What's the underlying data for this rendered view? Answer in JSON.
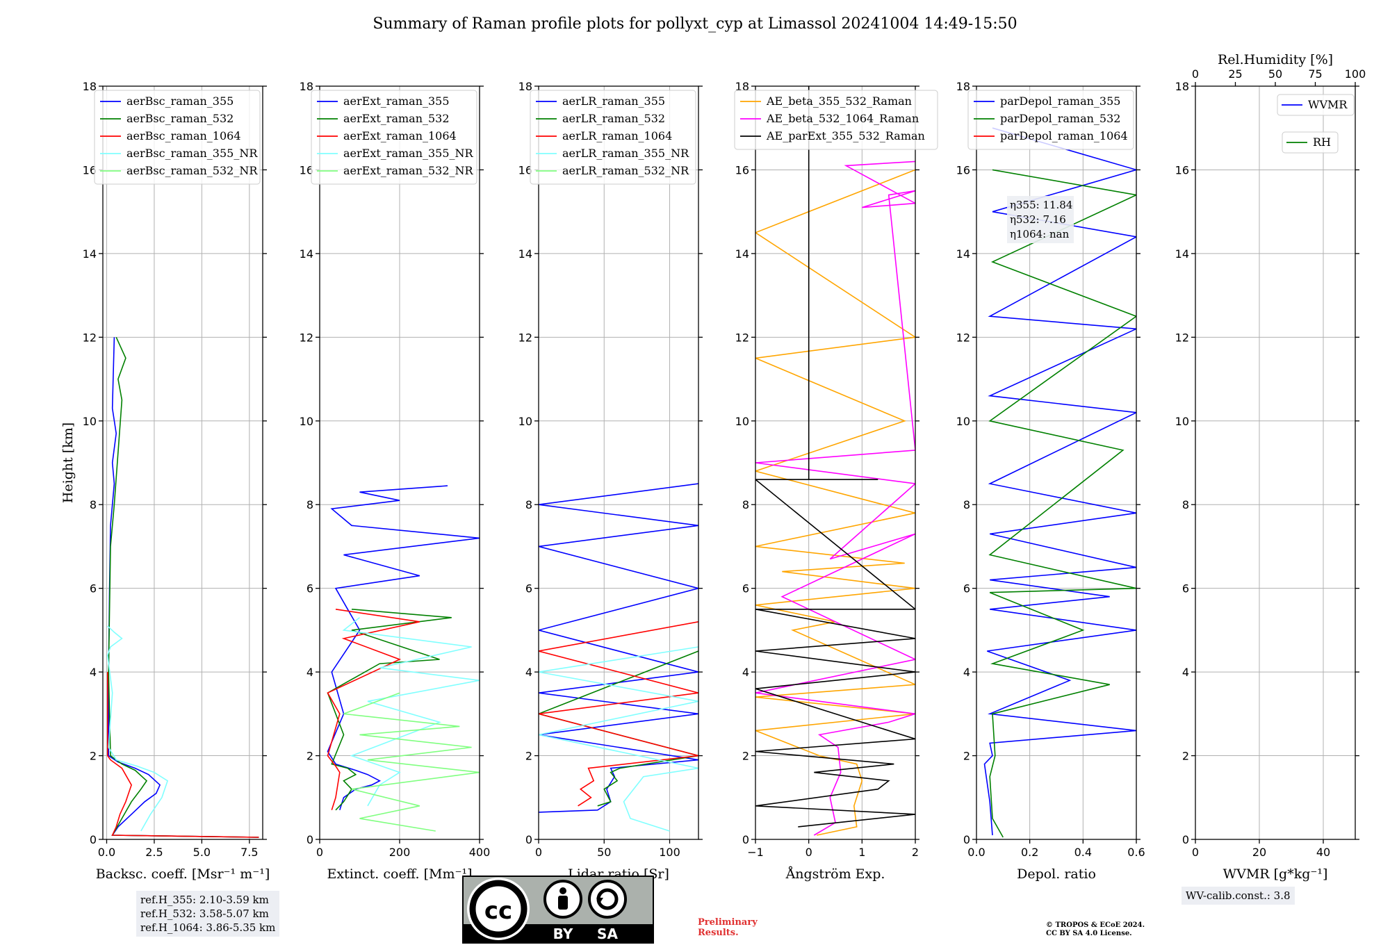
{
  "figure": {
    "title": "Summary of Raman profile plots for pollyxt_cyp at Limassol 20241004 14:49-15:50",
    "ylabel": "Height [km]",
    "ref_heights": [
      "ref.H_355: 2.10-3.59 km",
      "ref.H_532: 3.58-5.07 km",
      "ref.H_1064: 3.86-5.35 km"
    ],
    "wv_calib": "WV-calib.const.: 3.8",
    "preliminary": [
      "Preliminary",
      "Results."
    ],
    "copyright": [
      "© TROPOS & ECoE 2024.",
      "CC BY SA 4.0 License."
    ],
    "license_badge": {
      "by": "BY",
      "sa": "SA"
    },
    "colors": {
      "blue": "#0000ff",
      "green": "#008000",
      "red": "#ff0000",
      "cyan": "#80ffff",
      "lightgreen": "#80ff80",
      "orange": "#ffa500",
      "magenta": "#ff00ff",
      "black": "#000000"
    }
  },
  "chart_data": [
    {
      "type": "line",
      "id": "bsc",
      "xlabel": "Backsc. coeff. [Msr⁻¹ m⁻¹]",
      "xlim": [
        -0.2,
        8.2
      ],
      "ylim": [
        0,
        18
      ],
      "xticks": [
        0.0,
        2.5,
        5.0,
        7.5
      ],
      "xticklabels": [
        "0.0",
        "2.5",
        "5.0",
        "7.5"
      ],
      "legend": "top-right",
      "series": [
        {
          "name": "aerBsc_raman_355",
          "color": "#0000ff",
          "x": [
            8.0,
            0.3,
            0.6,
            1.3,
            2.0,
            2.6,
            2.8,
            2.2,
            1.5,
            0.6,
            0.1,
            0.1,
            0.15,
            0.2,
            0.4,
            0.3,
            0.5,
            0.3,
            0.4
          ],
          "y": [
            0.05,
            0.1,
            0.3,
            0.6,
            0.9,
            1.1,
            1.3,
            1.55,
            1.7,
            1.85,
            2.0,
            4.0,
            6.0,
            7.5,
            8.5,
            9.0,
            9.7,
            10.3,
            12.0
          ]
        },
        {
          "name": "aerBsc_raman_532",
          "color": "#008000",
          "x": [
            8.0,
            0.3,
            0.8,
            1.3,
            1.8,
            2.1,
            1.5,
            0.8,
            0.2,
            0.1,
            0.2,
            0.4,
            0.8,
            0.6,
            1.0,
            0.5
          ],
          "y": [
            0.05,
            0.1,
            0.5,
            0.9,
            1.2,
            1.4,
            1.65,
            1.8,
            2.0,
            4.0,
            7.0,
            8.0,
            10.5,
            11.0,
            11.5,
            12.0
          ]
        },
        {
          "name": "aerBsc_raman_1064",
          "color": "#ff0000",
          "x": [
            8.0,
            0.3,
            0.5,
            0.7,
            1.0,
            1.3,
            0.8,
            0.2,
            0.05,
            0.05
          ],
          "y": [
            0.05,
            0.1,
            0.3,
            0.6,
            0.9,
            1.3,
            1.7,
            1.9,
            2.0,
            4.0
          ]
        },
        {
          "name": "aerBsc_raman_355_NR",
          "color": "#80ffff",
          "x": [
            1.8,
            2.3,
            2.9,
            3.2,
            2.5,
            1.6,
            0.5,
            0.1,
            0.3,
            0.05,
            0.2,
            0.8,
            0.4,
            0.05
          ],
          "y": [
            0.2,
            0.6,
            1.0,
            1.4,
            1.6,
            1.75,
            1.9,
            2.2,
            3.5,
            4.4,
            4.6,
            4.8,
            4.95,
            5.1
          ]
        },
        {
          "name": "aerBsc_raman_532_NR",
          "color": "#80ff80",
          "x": [],
          "y": []
        }
      ]
    },
    {
      "type": "line",
      "id": "ext",
      "xlabel": "Extinct. coeff. [Mm⁻¹]",
      "xlim": [
        0,
        400
      ],
      "ylim": [
        0,
        18
      ],
      "xticks": [
        0,
        200,
        400
      ],
      "xticklabels": [
        "0",
        "200",
        "400"
      ],
      "legend": "top-right",
      "series": [
        {
          "name": "aerExt_raman_355",
          "color": "#0000ff",
          "x": [
            50,
            60,
            90,
            130,
            150,
            120,
            90,
            40,
            20,
            60,
            30,
            100,
            40,
            250,
            60,
            400,
            80,
            30,
            200,
            100,
            320
          ],
          "y": [
            0.7,
            1.0,
            1.2,
            1.3,
            1.4,
            1.55,
            1.65,
            1.8,
            2.1,
            3.0,
            4.0,
            5.0,
            6.0,
            6.3,
            6.8,
            7.2,
            7.5,
            7.9,
            8.1,
            8.3,
            8.45
          ]
        },
        {
          "name": "aerExt_raman_532",
          "color": "#008000",
          "x": [
            40,
            60,
            80,
            60,
            90,
            70,
            30,
            60,
            20,
            150,
            300,
            80,
            330,
            80
          ],
          "y": [
            0.7,
            0.9,
            1.2,
            1.4,
            1.55,
            1.7,
            1.8,
            2.5,
            3.5,
            4.2,
            4.3,
            5.0,
            5.3,
            5.5
          ]
        },
        {
          "name": "aerExt_raman_1064",
          "color": "#ff0000",
          "x": [
            30,
            40,
            45,
            50,
            40,
            20,
            50,
            20,
            200,
            60,
            250,
            40
          ],
          "y": [
            0.7,
            1.0,
            1.3,
            1.6,
            1.75,
            2.0,
            3.0,
            3.5,
            4.3,
            4.8,
            5.2,
            5.5
          ]
        },
        {
          "name": "aerExt_raman_355_NR",
          "color": "#80ffff",
          "x": [
            120,
            150,
            200,
            80,
            300,
            120,
            400,
            150,
            380,
            60,
            100
          ],
          "y": [
            0.8,
            1.3,
            1.6,
            2.0,
            2.8,
            3.3,
            3.8,
            4.1,
            4.6,
            5.0,
            5.3
          ]
        },
        {
          "name": "aerExt_raman_532_NR",
          "color": "#80ff80",
          "x": [
            290,
            100,
            250,
            80,
            400,
            120,
            380,
            100,
            350,
            60,
            200
          ],
          "y": [
            0.2,
            0.5,
            0.8,
            1.2,
            1.6,
            1.9,
            2.2,
            2.5,
            2.7,
            3.0,
            3.5
          ]
        }
      ]
    },
    {
      "type": "line",
      "id": "lr",
      "xlabel": "Lidar ratio [Sr]",
      "xlim": [
        0,
        122
      ],
      "ylim": [
        0,
        18
      ],
      "xticks": [
        0,
        50,
        100
      ],
      "xticklabels": [
        "0",
        "50",
        "100"
      ],
      "legend": "top-right",
      "series": [
        {
          "name": "aerLR_raman_355",
          "color": "#0000ff",
          "x": [
            0,
            45,
            55,
            52,
            58,
            55,
            122,
            0,
            122,
            0,
            122,
            0,
            122,
            0,
            122,
            0,
            122
          ],
          "y": [
            0.65,
            0.7,
            0.9,
            1.2,
            1.5,
            1.7,
            1.9,
            2.5,
            3.0,
            3.5,
            4.0,
            5.0,
            6.0,
            7.0,
            7.5,
            8.0,
            8.5
          ]
        },
        {
          "name": "aerLR_raman_532",
          "color": "#008000",
          "x": [
            45,
            55,
            50,
            60,
            55,
            62,
            122,
            0,
            122
          ],
          "y": [
            0.8,
            0.9,
            1.2,
            1.4,
            1.6,
            1.7,
            2.0,
            3.0,
            4.5
          ]
        },
        {
          "name": "aerLR_raman_1064",
          "color": "#ff0000",
          "x": [
            30,
            40,
            32,
            42,
            38,
            122,
            0,
            122,
            0,
            122
          ],
          "y": [
            0.8,
            1.0,
            1.2,
            1.4,
            1.7,
            2.0,
            3.0,
            3.5,
            4.5,
            5.2
          ]
        },
        {
          "name": "aerLR_raman_355_NR",
          "color": "#80ffff",
          "x": [
            100,
            70,
            65,
            80,
            122,
            0,
            122,
            0,
            122
          ],
          "y": [
            0.2,
            0.5,
            0.9,
            1.5,
            1.7,
            2.5,
            3.3,
            4.0,
            4.6
          ]
        },
        {
          "name": "aerLR_raman_532_NR",
          "color": "#80ff80",
          "x": [],
          "y": []
        }
      ]
    },
    {
      "type": "line",
      "id": "ae",
      "xlabel": "Ångström Exp.",
      "xlim": [
        -1,
        2
      ],
      "ylim": [
        0,
        18
      ],
      "xticks": [
        -1,
        0,
        1,
        2
      ],
      "xticklabels": [
        "−1",
        "0",
        "1",
        "2"
      ],
      "legend": "top-right",
      "series": [
        {
          "name": "AE_beta_355_532_Raman",
          "color": "#ffa500",
          "x": [
            0.15,
            0.9,
            0.85,
            1.0,
            0.9,
            0.2,
            -1,
            2,
            -1,
            2,
            -0.3,
            0.5,
            -1,
            2,
            -0.5,
            1.8,
            -1,
            2,
            -1,
            1.8,
            -1,
            2,
            -1,
            2
          ],
          "y": [
            0.1,
            0.3,
            0.8,
            1.4,
            1.8,
            2.0,
            2.6,
            3.0,
            3.4,
            3.7,
            5.0,
            5.2,
            5.6,
            6.0,
            6.4,
            6.6,
            7.0,
            7.8,
            8.8,
            10.0,
            11.5,
            12.0,
            14.5,
            16.0
          ]
        },
        {
          "name": "AE_beta_532_1064_Raman",
          "color": "#ff00ff",
          "x": [
            0.1,
            0.5,
            0.4,
            0.6,
            0.55,
            0.2,
            1.5,
            2.0,
            -1,
            2,
            -0.5,
            2,
            0.4,
            2,
            -1,
            2,
            1.5,
            2,
            1.0,
            2,
            0.7,
            2
          ],
          "y": [
            0.1,
            0.4,
            1.0,
            1.6,
            2.2,
            2.5,
            2.8,
            3.0,
            3.5,
            4.3,
            5.8,
            7.3,
            6.7,
            8.5,
            9.0,
            9.3,
            15.4,
            15.5,
            15.1,
            15.2,
            16.1,
            16.2
          ]
        },
        {
          "name": "AE_parExt_355_532_Raman",
          "color": "#000000",
          "x": [
            -0.2,
            2,
            -1,
            1.3,
            1.5,
            0.1,
            1.6,
            -1,
            2,
            -1,
            2,
            -1,
            2,
            -1,
            2,
            -1,
            1.3,
            0,
            0,
            0
          ],
          "y": [
            0.3,
            0.6,
            0.8,
            1.2,
            1.4,
            1.6,
            1.8,
            2.1,
            2.4,
            3.6,
            4.0,
            4.5,
            4.8,
            5.5,
            5.5,
            8.6,
            8.6,
            8.6,
            12.0,
            18.0
          ]
        }
      ]
    },
    {
      "type": "line",
      "id": "depol",
      "xlabel": "Depol. ratio",
      "xlim": [
        0,
        0.6
      ],
      "ylim": [
        0,
        18
      ],
      "xticks": [
        0.0,
        0.2,
        0.4,
        0.6
      ],
      "xticklabels": [
        "0.0",
        "0.2",
        "0.4",
        "0.6"
      ],
      "legend": "top-right",
      "annotation": [
        "η355: 11.84",
        "η532: 7.16",
        "η1064: nan"
      ],
      "series": [
        {
          "name": "parDepol_raman_355",
          "color": "#0000ff",
          "x": [
            0.06,
            0.05,
            0.03,
            0.06,
            0.05,
            0.6,
            0.05,
            0.35,
            0.04,
            0.6,
            0.05,
            0.5,
            0.05,
            0.6,
            0.05,
            0.6,
            0.05,
            0.6,
            0.05,
            0.6,
            0.05,
            0.6,
            0.06,
            0.6,
            0.06
          ],
          "y": [
            0.1,
            0.9,
            1.8,
            2.0,
            2.3,
            2.6,
            3.0,
            3.8,
            4.5,
            5.0,
            5.5,
            5.8,
            6.2,
            6.5,
            7.3,
            7.8,
            8.5,
            10.2,
            10.6,
            12.2,
            12.5,
            14.4,
            15.0,
            16.0,
            17.0
          ]
        },
        {
          "name": "parDepol_raman_532",
          "color": "#008000",
          "x": [
            0.1,
            0.06,
            0.05,
            0.07,
            0.06,
            0.5,
            0.06,
            0.4,
            0.05,
            0.6,
            0.05,
            0.55,
            0.05,
            0.6,
            0.06,
            0.6,
            0.06
          ],
          "y": [
            0.05,
            0.5,
            1.5,
            2.0,
            3.0,
            3.7,
            4.2,
            5.0,
            5.9,
            6.0,
            6.8,
            9.3,
            10.0,
            12.5,
            13.8,
            15.4,
            16.0
          ]
        },
        {
          "name": "parDepol_raman_1064",
          "color": "#ff0000",
          "x": [],
          "y": []
        }
      ]
    },
    {
      "type": "line",
      "id": "wv",
      "xlabel": "WVMR [g*kg⁻¹]",
      "xlim": [
        0,
        50
      ],
      "ylim": [
        0,
        18
      ],
      "xticks": [
        0,
        20,
        40
      ],
      "xticklabels": [
        "0",
        "20",
        "40"
      ],
      "top_axis": {
        "label": "Rel.Humidity [%]",
        "xlim": [
          0,
          100
        ],
        "xticks": [
          0,
          25,
          50,
          75,
          100
        ],
        "xticklabels": [
          "0",
          "25",
          "50",
          "75",
          "100"
        ]
      },
      "legend": "top-right",
      "series": [
        {
          "name": "WVMR",
          "color": "#0000ff",
          "x": [],
          "y": []
        },
        {
          "name": "RH",
          "color": "#008000",
          "x": [],
          "y": []
        }
      ]
    }
  ],
  "y_axis": {
    "ticks": [
      0,
      2,
      4,
      6,
      8,
      10,
      12,
      14,
      16,
      18
    ],
    "ticklabels": [
      "0",
      "2",
      "4",
      "6",
      "8",
      "10",
      "12",
      "14",
      "16",
      "18"
    ]
  }
}
